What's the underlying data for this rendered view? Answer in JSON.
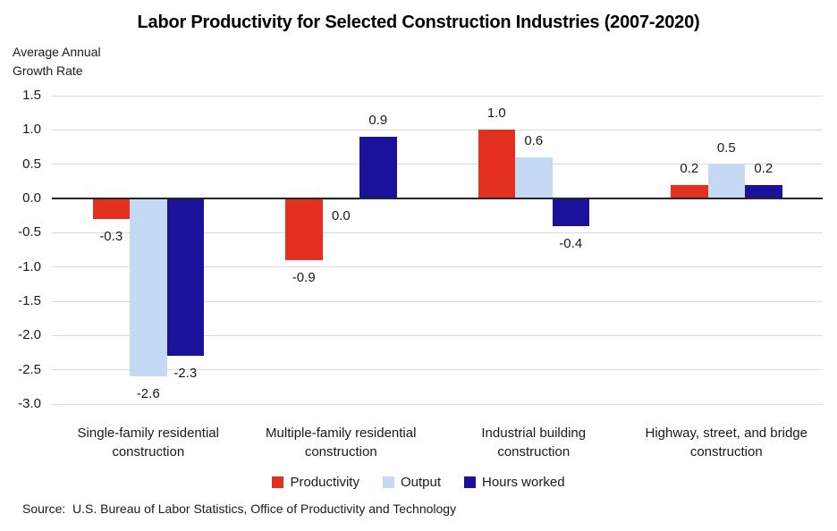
{
  "page": {
    "source": "Source:  U.S. Bureau of Labor Statistics, Office of Productivity and Technology"
  },
  "colors": {
    "productivity_red": "#e4301f",
    "output_light_blue": "#c4d9f3",
    "hours_navy": "#1a129b",
    "gridline": "#d9d9d9",
    "axis_line": "#262626",
    "text": "#1a1a1a"
  },
  "chart_data": {
    "type": "bar",
    "title": "Labor Productivity for Selected Construction Industries (2007-2020)",
    "ylabel": "Average Annual\nGrowth Rate",
    "xlabel": "",
    "ylim": [
      -3.0,
      1.5
    ],
    "y_ticks": [
      1.5,
      1.0,
      0.5,
      0.0,
      -0.5,
      -1.0,
      -1.5,
      -2.0,
      -2.5,
      -3.0
    ],
    "grid": true,
    "value_labels": true,
    "legend_position": "bottom",
    "categories": [
      "Single-family residential\nconstruction",
      "Multiple-family residential\nconstruction",
      "Industrial building\nconstruction",
      "Highway, street, and bridge\nconstruction"
    ],
    "series": [
      {
        "name": "Productivity",
        "color": "#e4301f",
        "values": [
          -0.3,
          -0.9,
          1.0,
          0.2
        ]
      },
      {
        "name": "Output",
        "color": "#c4d9f3",
        "values": [
          -2.6,
          0.0,
          0.6,
          0.5
        ]
      },
      {
        "name": "Hours worked",
        "color": "#1a129b",
        "values": [
          -2.3,
          0.9,
          -0.4,
          0.2
        ]
      }
    ]
  }
}
